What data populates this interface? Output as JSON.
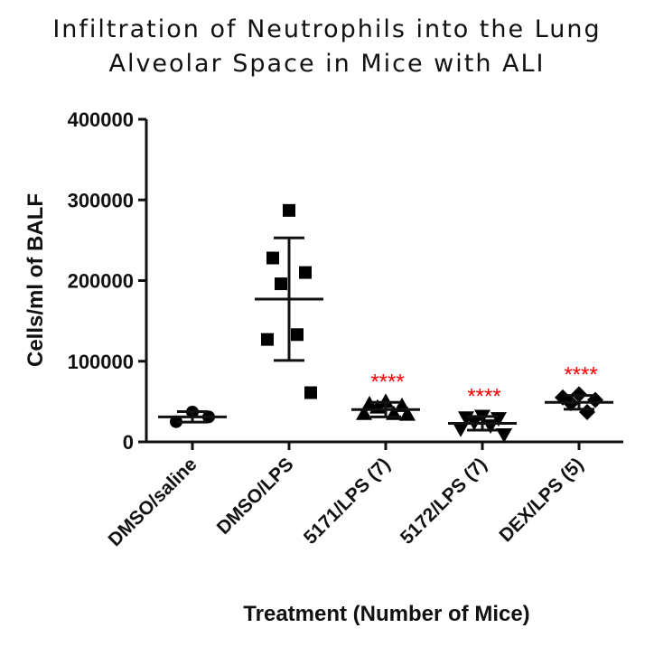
{
  "chart_data": {
    "type": "scatter",
    "title_lines": [
      "Infiltration of Neutrophils into the Lung",
      "Alveolar Space in Mice with ALI"
    ],
    "xlabel": "Treatment (Number of Mice)",
    "ylabel": "Cells/ml of BALF",
    "ylim": [
      0,
      400000
    ],
    "yticks": [
      "0",
      "100000",
      "200000",
      "300000",
      "400000"
    ],
    "grid": false,
    "colors": {
      "points": "#000000",
      "significance": "#ff0000"
    },
    "groups": [
      {
        "label": "DMSO/saline",
        "marker": "circle",
        "mean": 31000,
        "sd": 6500,
        "significance": "",
        "values": [
          37000,
          25000,
          31000
        ]
      },
      {
        "label": "DMSO/LPS",
        "marker": "square",
        "mean": 177000,
        "sd": 76000,
        "significance": "",
        "values": [
          287000,
          228000,
          210000,
          196000,
          133000,
          127000,
          61000
        ]
      },
      {
        "label": "5171/LPS (7)",
        "marker": "triangle-up",
        "mean": 40000,
        "sd": 9000,
        "significance": "****",
        "values": [
          50000,
          47000,
          45000,
          43000,
          35000,
          35000,
          34000
        ]
      },
      {
        "label": "5172/LPS (7)",
        "marker": "triangle-down",
        "mean": 23000,
        "sd": 8500,
        "significance": "****",
        "values": [
          32000,
          30000,
          29000,
          24000,
          20000,
          16000,
          9000
        ]
      },
      {
        "label": "DEX/LPS (5)",
        "marker": "diamond",
        "mean": 49000,
        "sd": 8500,
        "significance": "****",
        "values": [
          59000,
          55000,
          52000,
          48000,
          37000
        ]
      }
    ]
  }
}
